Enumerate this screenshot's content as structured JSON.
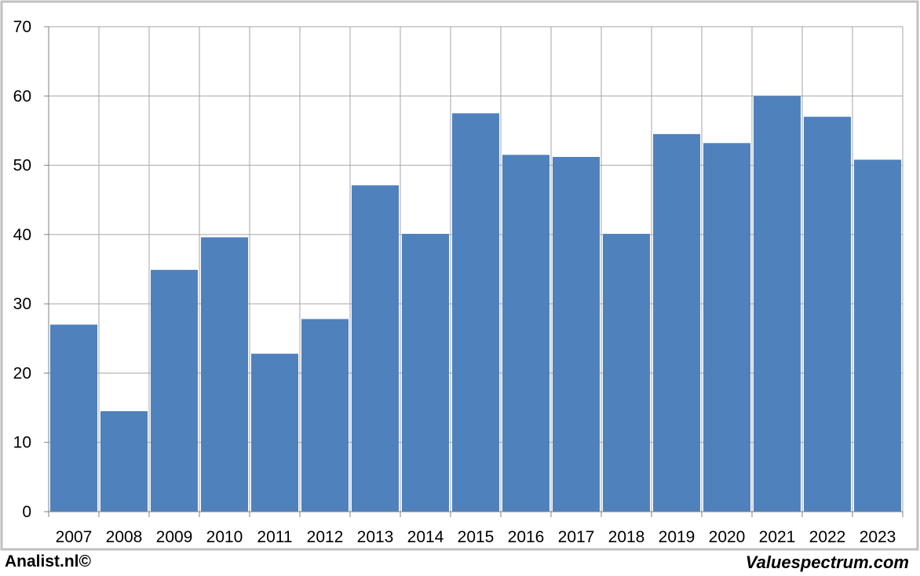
{
  "chart_data": {
    "type": "bar",
    "categories": [
      "2007",
      "2008",
      "2009",
      "2010",
      "2011",
      "2012",
      "2013",
      "2014",
      "2015",
      "2016",
      "2017",
      "2018",
      "2019",
      "2020",
      "2021",
      "2022",
      "2023"
    ],
    "values": [
      27.0,
      14.5,
      34.9,
      39.6,
      22.8,
      27.8,
      47.1,
      40.1,
      57.5,
      51.5,
      51.2,
      40.1,
      54.5,
      53.2,
      60.0,
      57.0,
      50.8
    ],
    "ylim": [
      0,
      70
    ],
    "yticks": [
      0,
      10,
      20,
      30,
      40,
      50,
      60,
      70
    ],
    "grid": true,
    "bar_color": "#4F81BD",
    "grid_color": "#A6A6A6"
  },
  "footer": {
    "left": "Analist.nl©",
    "right": "Valuespectrum.com"
  },
  "frame_color": "#C0C0C0"
}
